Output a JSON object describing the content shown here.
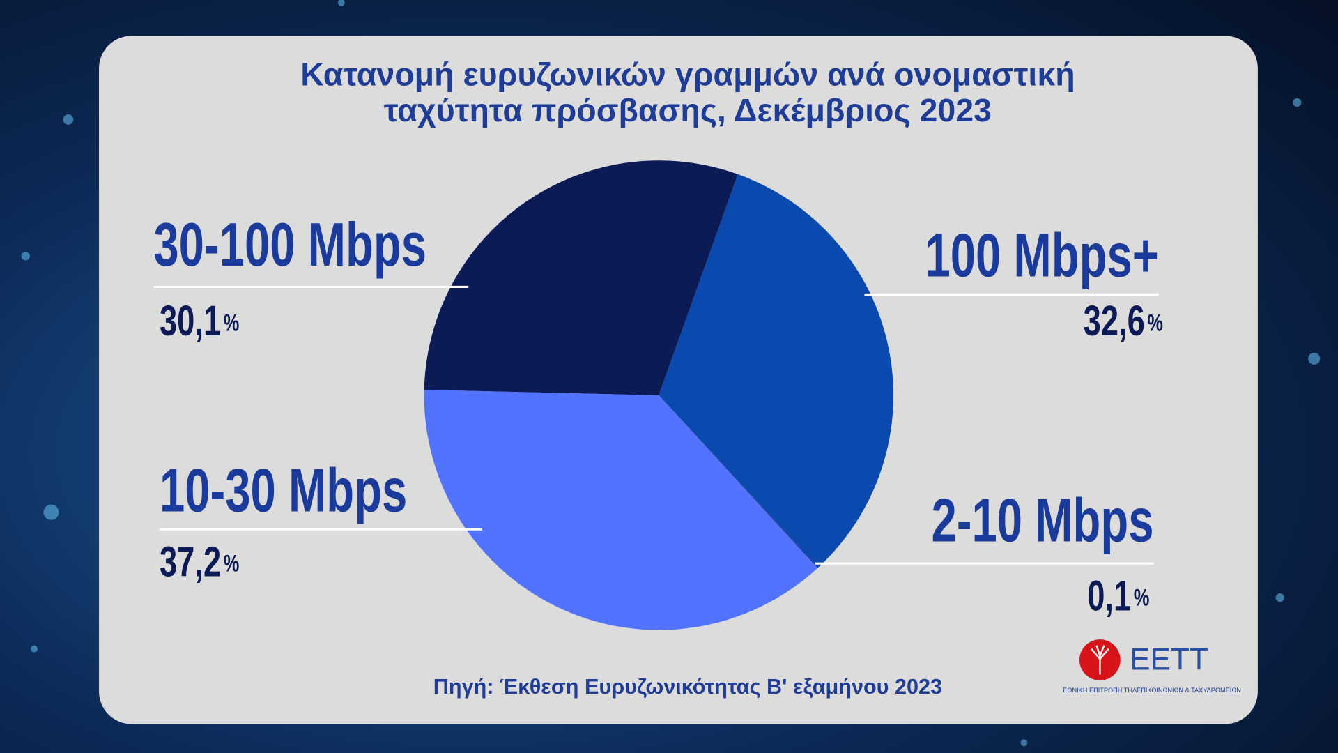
{
  "chart_data": {
    "type": "pie",
    "title": [
      "Κατανομή ευρυζωνικών γραμμών ανά ονομαστική",
      "ταχύτητα πρόσβασης, Δεκέμβριος 2023"
    ],
    "categories": [
      "100 Mbps+",
      "2-10 Mbps",
      "10-30 Mbps",
      "30-100 Mbps"
    ],
    "values": [
      32.6,
      0.1,
      37.2,
      30.1
    ],
    "value_labels": [
      "32,6%",
      "0,1%",
      "37,2%",
      "30,1%"
    ],
    "colors": [
      "#0a49ad",
      "#1d3f9a",
      "#5273ff",
      "#0c1a55"
    ],
    "source": "Πηγή: Έκθεση Ευρυζωνικότητας Β' εξαμήνου 2023"
  },
  "logo": {
    "name": "ΕΕΤΤ",
    "subtitle": "ΕΘΝΙΚΗ ΕΠΙΤΡΟΠΗ ΤΗΛΕΠΙΚΟΙΝΩΝΙΩΝ & ΤΑΧΥΔΡΟΜΕΙΩΝ"
  }
}
